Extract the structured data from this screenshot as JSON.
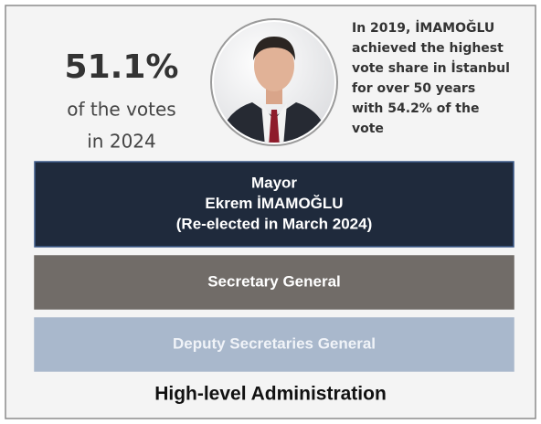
{
  "stat": {
    "value": "51.1%",
    "lines": [
      "of the votes",
      "in 2024"
    ]
  },
  "note": {
    "lines": [
      "In 2019, İMAMOĞLU",
      "achieved the highest",
      "vote share in İstanbul",
      "for over 50 years",
      "with 54.2% of the",
      "vote"
    ]
  },
  "levels": [
    {
      "lines": [
        "Mayor",
        "Ekrem İMAMOĞLU",
        "(Re-elected in March 2024)"
      ]
    },
    {
      "lines": [
        "Secretary General"
      ]
    },
    {
      "lines": [
        "Deputy Secretaries General"
      ]
    }
  ],
  "footer": "High-level Administration"
}
